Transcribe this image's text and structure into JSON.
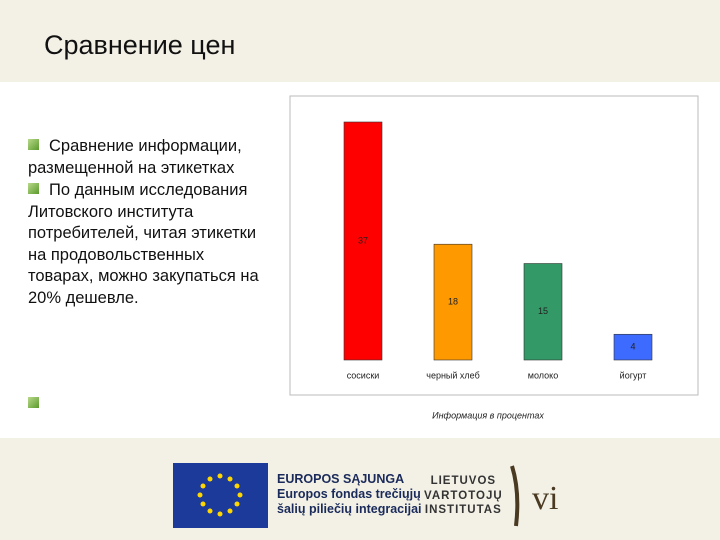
{
  "header": {
    "title": "Сравнение цен"
  },
  "bullets": [
    "Сравнение информации, размещенной на этикетках",
    "По данным исследования Литовского института потребителей, читая этикетки на продовольственных товарах, можно закупаться на 20% дешевле."
  ],
  "chart_data": {
    "type": "bar",
    "categories": [
      "сосиски",
      "черный хлеб",
      "молоко",
      "йогурт"
    ],
    "values": [
      37,
      18,
      15,
      4
    ],
    "colors": [
      "#ff0000",
      "#ff9900",
      "#339966",
      "#3d6bff"
    ],
    "xlabel": "Информация в процентах"
  },
  "footer": {
    "eu_logo": [
      "EUROPOS SĄJUNGA",
      "Europos fondas trečiųjų",
      "šalių piliečių integracijai"
    ],
    "lvi_logo": [
      "LIETUVOS",
      "VARTOTOJŲ",
      "INSTITUTAS"
    ],
    "lvi_mark": "vi"
  }
}
